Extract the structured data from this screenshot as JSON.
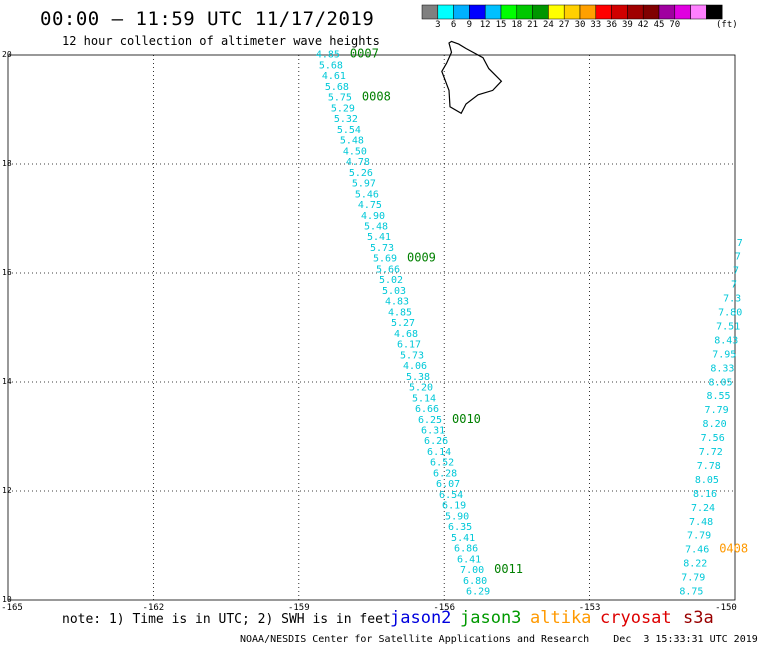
{
  "header": {
    "title": "00:00 – 11:59 UTC 11/17/2019",
    "subtitle": "12 hour collection of altimeter wave heights"
  },
  "colorbar": {
    "unit": "(ft)",
    "colors": [
      "#808080",
      "#00ffff",
      "#00b0ff",
      "#0000ff",
      "#00c0ff",
      "#00ff00",
      "#00c800",
      "#009600",
      "#ffff00",
      "#ffd000",
      "#ffa000",
      "#ff0000",
      "#d00000",
      "#a00000",
      "#800000",
      "#a000a0",
      "#e000e0",
      "#ff80ff",
      "#000000"
    ],
    "labels": [
      "3",
      "6",
      "9",
      "12",
      "15",
      "18",
      "21",
      "24",
      "27",
      "30",
      "33",
      "36",
      "39",
      "42",
      "45",
      "70"
    ]
  },
  "map": {
    "lon_range": [
      -165,
      -150
    ],
    "lat_range": [
      10,
      20
    ],
    "lat_labels": [
      "10",
      "12",
      "14",
      "16",
      "18",
      "20"
    ],
    "lon_labels": [
      "-165",
      "-162",
      "-159",
      "-156",
      "-153",
      "-150"
    ],
    "island": "Hawaii (Big Island) outline"
  },
  "tracks": [
    {
      "mission": "jason3",
      "color": "#00c8d8",
      "start": {
        "lon": -158.4,
        "lat": 19.95
      },
      "end": {
        "lon": -155.3,
        "lat": 10.1
      },
      "values": [
        "4.85",
        "5.68",
        "4.61",
        "5.68",
        "5.75",
        "5.29",
        "5.32",
        "5.54",
        "5.48",
        "4.50",
        "4.78",
        "5.26",
        "5.97",
        "5.46",
        "4.75",
        "4.90",
        "5.48",
        "5.41",
        "5.73",
        "5.69",
        "5.66",
        "5.02",
        "5.03",
        "4.83",
        "4.85",
        "5.27",
        "4.68",
        "6.17",
        "5.73",
        "4.06",
        "5.38",
        "5.20",
        "5.14",
        "6.66",
        "6.25",
        "6.31",
        "6.26",
        "6.14",
        "6.52",
        "6.28",
        "6.07",
        "6.54",
        "6.19",
        "5.90",
        "6.35",
        "5.41",
        "6.86",
        "6.41",
        "7.00",
        "6.80",
        "6.29"
      ],
      "pass_labels": [
        {
          "text": "0007",
          "index": 0
        },
        {
          "text": "0008",
          "index": 4
        },
        {
          "text": "0009",
          "index": 19
        },
        {
          "text": "0010",
          "index": 34
        },
        {
          "text": "0011",
          "index": 48
        }
      ]
    },
    {
      "mission": "altika",
      "color": "#00c8d8",
      "start": {
        "lon": -149.9,
        "lat": 16.5
      },
      "end": {
        "lon": -150.9,
        "lat": 10.1
      },
      "values": [
        "7",
        "7",
        "7",
        "7",
        "7.3",
        "7.80",
        "7.51",
        "8.43",
        "7.95",
        "8.33",
        "8.05",
        "8.55",
        "7.79",
        "8.20",
        "7.56",
        "7.72",
        "7.78",
        "8.05",
        "8.16",
        "7.24",
        "7.48",
        "7.79",
        "7.46",
        "8.22",
        "7.79",
        "8.75"
      ],
      "pass_labels": [
        {
          "text": "0408",
          "index": 22
        }
      ],
      "pass_color": "#ff9900"
    }
  ],
  "pass_color": "#008000",
  "footer": {
    "note": "note: 1) Time is in UTC; 2) SWH is in feet",
    "missions": [
      {
        "name": "jason2",
        "color": "#0000dd"
      },
      {
        "name": "jason3",
        "color": "#009900"
      },
      {
        "name": "altika",
        "color": "#ff9900"
      },
      {
        "name": "cryosat",
        "color": "#dd0000"
      },
      {
        "name": "s3a",
        "color": "#990000"
      }
    ],
    "credit": "NOAA/NESDIS Center for Satellite Applications and Research    Dec  3 15:33:31 UTC 2019"
  }
}
